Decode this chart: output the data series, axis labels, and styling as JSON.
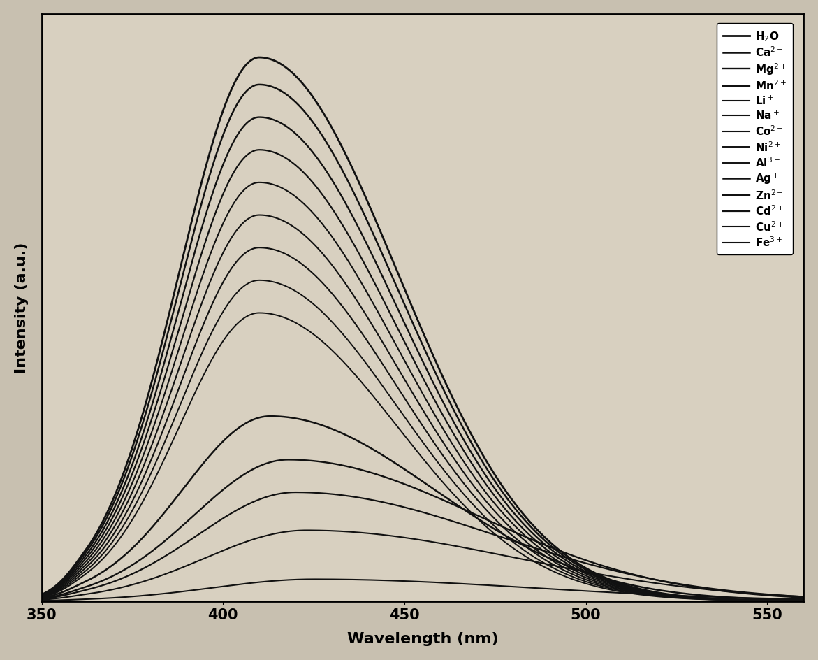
{
  "xlabel": "Wavelength (nm)",
  "ylabel": "Intensity (a.u.)",
  "xlim": [
    350,
    560
  ],
  "ylim": [
    0,
    1.08
  ],
  "xticks": [
    350,
    400,
    450,
    500,
    550
  ],
  "background_color": "#c8c0b0",
  "plot_bg_color": "#d8d0c0",
  "axis_label_fontsize": 16,
  "tick_fontsize": 15,
  "legend_fontsize": 11,
  "peak_wavelength": 410,
  "series": [
    {
      "label_math": "H$_2$O",
      "peak": 1.0,
      "peak_wl": 410,
      "sigma_l": 22,
      "sigma_r": 38,
      "color": "#111111",
      "lw": 2.0
    },
    {
      "label_math": "Ca$^{2+}$",
      "peak": 0.95,
      "peak_wl": 410,
      "sigma_l": 22,
      "sigma_r": 38,
      "color": "#111111",
      "lw": 1.8
    },
    {
      "label_math": "Mg$^{2+}$",
      "peak": 0.89,
      "peak_wl": 410,
      "sigma_l": 22,
      "sigma_r": 38,
      "color": "#111111",
      "lw": 1.7
    },
    {
      "label_math": "Mn$^{2+}$",
      "peak": 0.83,
      "peak_wl": 410,
      "sigma_l": 22,
      "sigma_r": 38,
      "color": "#111111",
      "lw": 1.6
    },
    {
      "label_math": "Li$^+$",
      "peak": 0.77,
      "peak_wl": 410,
      "sigma_l": 22,
      "sigma_r": 38,
      "color": "#111111",
      "lw": 1.5
    },
    {
      "label_math": "Na$^+$",
      "peak": 0.71,
      "peak_wl": 410,
      "sigma_l": 22,
      "sigma_r": 38,
      "color": "#111111",
      "lw": 1.5
    },
    {
      "label_math": "Co$^{2+}$",
      "peak": 0.65,
      "peak_wl": 410,
      "sigma_l": 22,
      "sigma_r": 38,
      "color": "#111111",
      "lw": 1.5
    },
    {
      "label_math": "Ni$^{2+}$",
      "peak": 0.59,
      "peak_wl": 410,
      "sigma_l": 22,
      "sigma_r": 38,
      "color": "#111111",
      "lw": 1.4
    },
    {
      "label_math": "Al$^{3+}$",
      "peak": 0.53,
      "peak_wl": 410,
      "sigma_l": 22,
      "sigma_r": 38,
      "color": "#111111",
      "lw": 1.4
    },
    {
      "label_math": "Ag$^+$",
      "peak": 0.34,
      "peak_wl": 413,
      "sigma_l": 24,
      "sigma_r": 45,
      "color": "#111111",
      "lw": 1.8
    },
    {
      "label_math": "Zn$^{2+}$",
      "peak": 0.26,
      "peak_wl": 418,
      "sigma_l": 26,
      "sigma_r": 52,
      "color": "#111111",
      "lw": 1.7
    },
    {
      "label_math": "Cd$^{2+}$",
      "peak": 0.2,
      "peak_wl": 420,
      "sigma_l": 27,
      "sigma_r": 55,
      "color": "#111111",
      "lw": 1.6
    },
    {
      "label_math": "Cu$^{2+}$",
      "peak": 0.13,
      "peak_wl": 423,
      "sigma_l": 28,
      "sigma_r": 58,
      "color": "#111111",
      "lw": 1.5
    },
    {
      "label_math": "Fe$^{3+}$",
      "peak": 0.04,
      "peak_wl": 425,
      "sigma_l": 28,
      "sigma_r": 60,
      "color": "#111111",
      "lw": 1.5
    }
  ]
}
